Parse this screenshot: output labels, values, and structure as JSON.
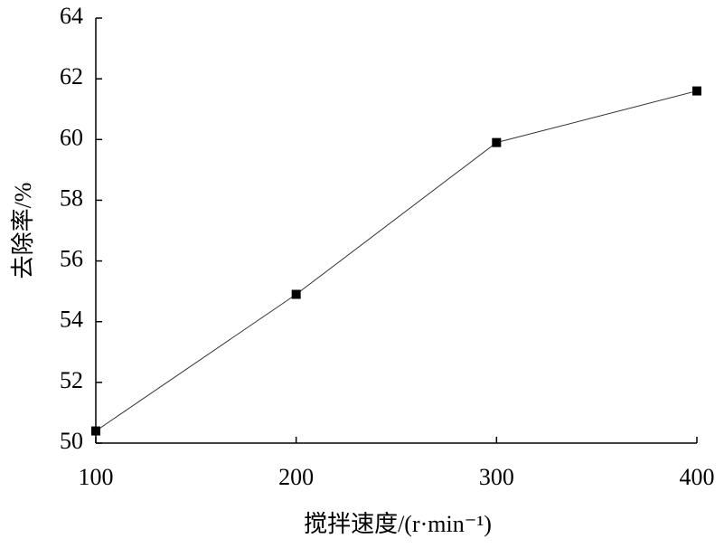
{
  "chart_data": {
    "type": "line",
    "xlabel": "搅拌速度/(r·min⁻¹)",
    "ylabel": "去除率/%",
    "x": [
      100,
      200,
      300,
      400
    ],
    "series": [
      {
        "color": "#000000",
        "values": [
          50.4,
          54.9,
          59.9,
          61.6
        ]
      }
    ],
    "xlim": [
      100,
      400
    ],
    "xticks": [
      100,
      200,
      300,
      400
    ],
    "ylim": [
      50,
      64
    ],
    "yticks": [
      50,
      52,
      54,
      56,
      58,
      60,
      62,
      64
    ],
    "grid": false
  }
}
